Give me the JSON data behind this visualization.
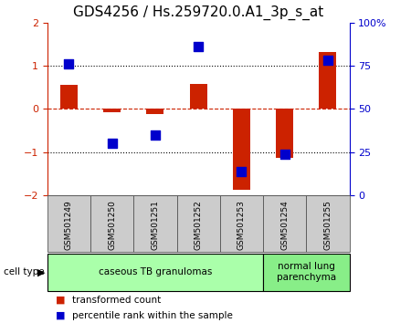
{
  "title": "GDS4256 / Hs.259720.0.A1_3p_s_at",
  "samples": [
    "GSM501249",
    "GSM501250",
    "GSM501251",
    "GSM501252",
    "GSM501253",
    "GSM501254",
    "GSM501255"
  ],
  "transformed_count": [
    0.55,
    -0.07,
    -0.12,
    0.58,
    -1.88,
    -1.12,
    1.32
  ],
  "percentile_rank": [
    76,
    30,
    35,
    86,
    14,
    24,
    78
  ],
  "ylim_left": [
    -2,
    2
  ],
  "ylim_right": [
    0,
    100
  ],
  "yticks_left": [
    -2,
    -1,
    0,
    1,
    2
  ],
  "yticks_right": [
    0,
    25,
    50,
    75,
    100
  ],
  "bar_color": "#cc2200",
  "dot_color": "#0000cc",
  "bar_width": 0.4,
  "dot_size": 45,
  "cell_type_groups": [
    {
      "label": "caseous TB granulomas",
      "start": 0,
      "end": 4,
      "color": "#aaffaa"
    },
    {
      "label": "normal lung\nparenchyma",
      "start": 5,
      "end": 6,
      "color": "#88ee88"
    }
  ],
  "legend_items": [
    {
      "label": "transformed count",
      "color": "#cc2200"
    },
    {
      "label": "percentile rank within the sample",
      "color": "#0000cc"
    }
  ],
  "cell_type_label": "cell type",
  "left_axis_color": "#cc2200",
  "right_axis_color": "#0000cc",
  "background_color": "#ffffff",
  "tick_label_fontsize": 8,
  "title_fontsize": 11,
  "sample_box_color": "#cccccc",
  "sample_box_edge": "#555555"
}
